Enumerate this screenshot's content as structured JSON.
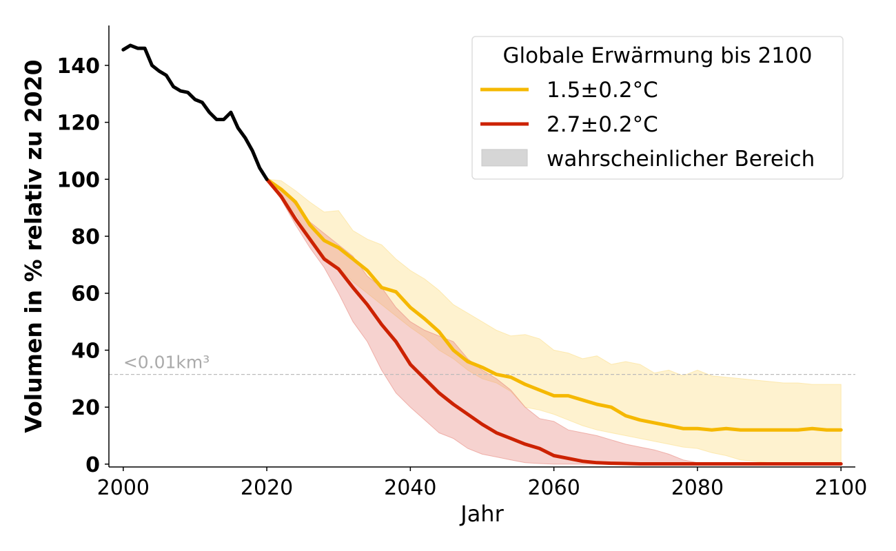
{
  "chart_data": {
    "type": "line",
    "xlabel": "Jahr",
    "ylabel": "Volumen in % relativ zu 2020",
    "xlim": [
      1998,
      2102
    ],
    "ylim": [
      -1,
      154
    ],
    "xticks": [
      2000,
      2020,
      2040,
      2060,
      2080,
      2100
    ],
    "yticks": [
      0,
      20,
      40,
      60,
      80,
      100,
      120,
      140
    ],
    "grid": false,
    "legend": {
      "title": "Globale Erwärmung bis 2100",
      "position": "top-right",
      "entries": [
        "1.5±0.2°C",
        "2.7±0.2°C",
        "wahrscheinlicher Bereich"
      ]
    },
    "threshold": {
      "y": 31.5,
      "label": "<0.01km³"
    },
    "colors": {
      "historical": "#000000",
      "s15": "#f5b800",
      "s15_band": "#fcdf8c",
      "s27": "#cc2200",
      "s27_band": "#e88a80",
      "threshold": "#bbbbbb",
      "legend_band": "#d6d6d6"
    },
    "series": [
      {
        "key": "historical",
        "x": [
          2000,
          2001,
          2002,
          2003,
          2004,
          2005,
          2006,
          2007,
          2008,
          2009,
          2010,
          2011,
          2012,
          2013,
          2014,
          2015,
          2016,
          2017,
          2018,
          2019,
          2020
        ],
        "values": [
          145.5,
          147,
          146,
          146,
          140,
          138,
          136.5,
          132.5,
          131,
          130.5,
          128,
          127,
          123.5,
          121,
          121,
          123.5,
          118,
          114.5,
          110,
          104,
          100
        ]
      },
      {
        "key": "s15",
        "name": "1.5±0.2°C",
        "x": [
          2020,
          2022,
          2024,
          2026,
          2028,
          2030,
          2032,
          2034,
          2036,
          2038,
          2040,
          2042,
          2044,
          2046,
          2048,
          2050,
          2052,
          2054,
          2056,
          2058,
          2060,
          2062,
          2064,
          2066,
          2068,
          2070,
          2072,
          2074,
          2076,
          2078,
          2080,
          2082,
          2084,
          2086,
          2088,
          2090,
          2092,
          2094,
          2096,
          2098,
          2100
        ],
        "values": [
          100,
          96.5,
          92,
          84,
          78.5,
          76,
          72,
          68,
          62,
          60.5,
          55,
          51,
          46.5,
          40,
          36,
          34,
          31.5,
          30.5,
          28,
          26,
          24,
          24,
          22.5,
          21,
          20,
          17,
          15.5,
          14.5,
          13.5,
          12.5,
          12.5,
          12,
          12.5,
          12,
          12,
          12,
          12,
          12,
          12.5,
          12,
          12
        ],
        "lower": [
          100,
          94,
          88,
          80,
          73,
          69,
          64,
          60,
          56,
          52,
          48,
          44.5,
          40,
          37,
          33,
          30,
          28.5,
          25.5,
          20,
          19,
          17.5,
          15.5,
          13.5,
          12,
          11,
          10,
          9,
          8,
          7,
          6,
          5.5,
          4,
          3,
          1.5,
          1,
          0.5,
          0.5,
          0.5,
          0.5,
          0.5,
          0.5
        ],
        "upper": [
          100,
          99.5,
          96,
          92,
          88.5,
          89,
          82,
          79,
          77,
          72,
          68,
          65,
          61,
          56,
          53,
          50,
          47,
          45,
          45.5,
          44,
          40,
          39,
          37,
          38,
          35,
          36,
          35,
          32,
          33,
          31,
          33,
          31,
          30.5,
          30,
          29.5,
          29,
          28.5,
          28.5,
          28,
          28,
          28
        ]
      },
      {
        "key": "s27",
        "name": "2.7±0.2°C",
        "x": [
          2020,
          2022,
          2024,
          2026,
          2028,
          2030,
          2032,
          2034,
          2036,
          2038,
          2040,
          2042,
          2044,
          2046,
          2048,
          2050,
          2052,
          2054,
          2056,
          2058,
          2060,
          2062,
          2064,
          2066,
          2068,
          2070,
          2072,
          2074,
          2076,
          2078,
          2080,
          2082,
          2084,
          2086,
          2088,
          2090,
          2092,
          2094,
          2096,
          2098,
          2100
        ],
        "values": [
          100,
          94,
          86,
          79,
          72,
          68.5,
          62,
          56,
          49,
          43,
          35,
          30,
          25,
          21,
          17.5,
          14,
          11,
          9,
          7,
          5.5,
          3,
          2,
          1,
          0.5,
          0.3,
          0.2,
          0.1,
          0.1,
          0.1,
          0.1,
          0.1,
          0.1,
          0.1,
          0.1,
          0.1,
          0.1,
          0.1,
          0.1,
          0.1,
          0.1,
          0.1
        ],
        "lower": [
          100,
          93,
          84,
          76,
          69,
          60,
          50,
          43,
          33,
          25,
          20,
          15.5,
          11,
          9,
          5.5,
          3.5,
          2.5,
          1.5,
          0.5,
          0.2,
          0,
          0,
          0,
          0,
          0,
          0,
          0,
          0,
          0,
          0,
          0,
          0,
          0,
          0,
          0,
          0,
          0,
          0,
          0,
          0,
          0
        ],
        "upper": [
          100,
          97,
          91,
          85,
          81,
          77,
          73,
          66,
          62,
          55,
          50,
          47,
          45,
          43,
          37,
          33,
          30,
          26,
          20,
          16,
          15,
          12,
          11,
          10,
          8.5,
          7,
          6,
          5,
          3.5,
          1.5,
          0.5,
          0,
          0,
          0,
          0,
          0,
          0,
          0,
          0,
          0,
          0
        ]
      }
    ]
  }
}
